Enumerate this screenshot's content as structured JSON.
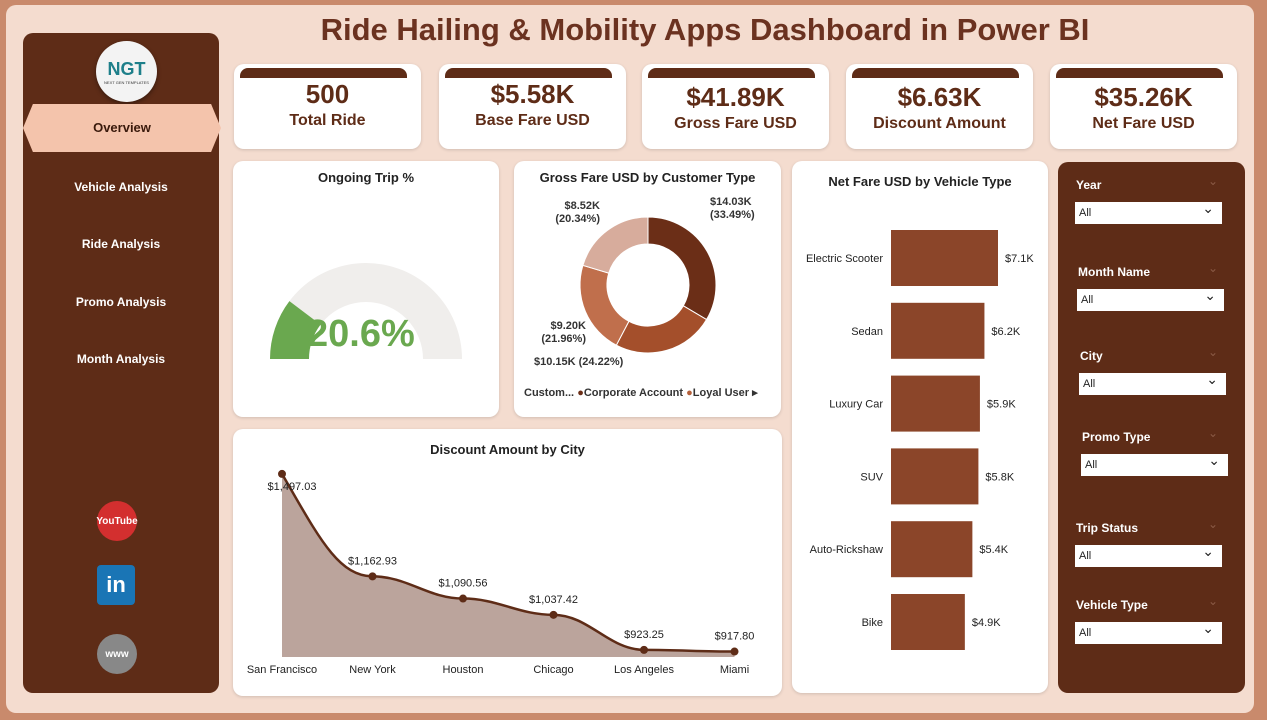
{
  "title": "Ride Hailing & Mobility Apps Dashboard in Power BI",
  "logo": {
    "text": "NGT",
    "sub": "NEXT GEN TEMPLATES"
  },
  "nav": [
    "Overview",
    "Vehicle Analysis",
    "Ride Analysis",
    "Promo Analysis",
    "Month Analysis"
  ],
  "social": [
    "YouTube",
    "in",
    "www"
  ],
  "kpis": [
    {
      "value": "500",
      "label": "Total Ride"
    },
    {
      "value": "$5.58K",
      "label": "Base Fare USD"
    },
    {
      "value": "$41.89K",
      "label": "Gross Fare USD"
    },
    {
      "value": "$6.63K",
      "label": "Discount Amount"
    },
    {
      "value": "$35.26K",
      "label": "Net Fare USD"
    }
  ],
  "gauge": {
    "title": "Ongoing Trip %",
    "value": 20.6,
    "label": "20.6%",
    "color": "#6AA84F"
  },
  "donut": {
    "title": "Gross Fare USD by Customer Type",
    "legend_title": "Custom...",
    "legend": [
      {
        "name": "Corporate Account",
        "color": "#6B2E17"
      },
      {
        "name": "Loyal User",
        "color": "#B5603A"
      }
    ],
    "slices": [
      {
        "value": 14.03,
        "label": "$14.03K",
        "pct": "(33.49%)",
        "color": "#6B2E17"
      },
      {
        "value": 10.15,
        "label": "$10.15K",
        "pct": "(24.22%)",
        "color": "#A44F2B"
      },
      {
        "value": 9.2,
        "label": "$9.20K",
        "pct": "(21.96%)",
        "color": "#C06F4C"
      },
      {
        "value": 8.52,
        "label": "$8.52K",
        "pct": "(20.34%)",
        "color": "#D7AC9C"
      }
    ]
  },
  "chart_data": [
    {
      "type": "area",
      "title": "Discount Amount by City",
      "categories": [
        "San Francisco",
        "New York",
        "Houston",
        "Chicago",
        "Los Angeles",
        "Miami"
      ],
      "values": [
        1497.03,
        1162.93,
        1090.56,
        1037.42,
        923.25,
        917.8
      ],
      "labels": [
        "$1,497.03",
        "$1,162.93",
        "$1,090.56",
        "$1,037.42",
        "$923.25",
        "$917.80"
      ]
    },
    {
      "type": "bar",
      "orientation": "horizontal",
      "title": "Net Fare USD by Vehicle Type",
      "categories": [
        "Electric Scooter",
        "Sedan",
        "Luxury Car",
        "SUV",
        "Auto-Rickshaw",
        "Bike"
      ],
      "values": [
        7.1,
        6.2,
        5.9,
        5.8,
        5.4,
        4.9
      ],
      "labels": [
        "$7.1K",
        "$6.2K",
        "$5.9K",
        "$5.8K",
        "$5.4K",
        "$4.9K"
      ]
    }
  ],
  "slicers": [
    {
      "label": "Year",
      "value": "All"
    },
    {
      "label": "Month Name",
      "value": "All"
    },
    {
      "label": "City",
      "value": "All"
    },
    {
      "label": "Promo Type",
      "value": "All"
    },
    {
      "label": "Trip Status",
      "value": "All"
    },
    {
      "label": "Vehicle Type",
      "value": "All"
    }
  ]
}
